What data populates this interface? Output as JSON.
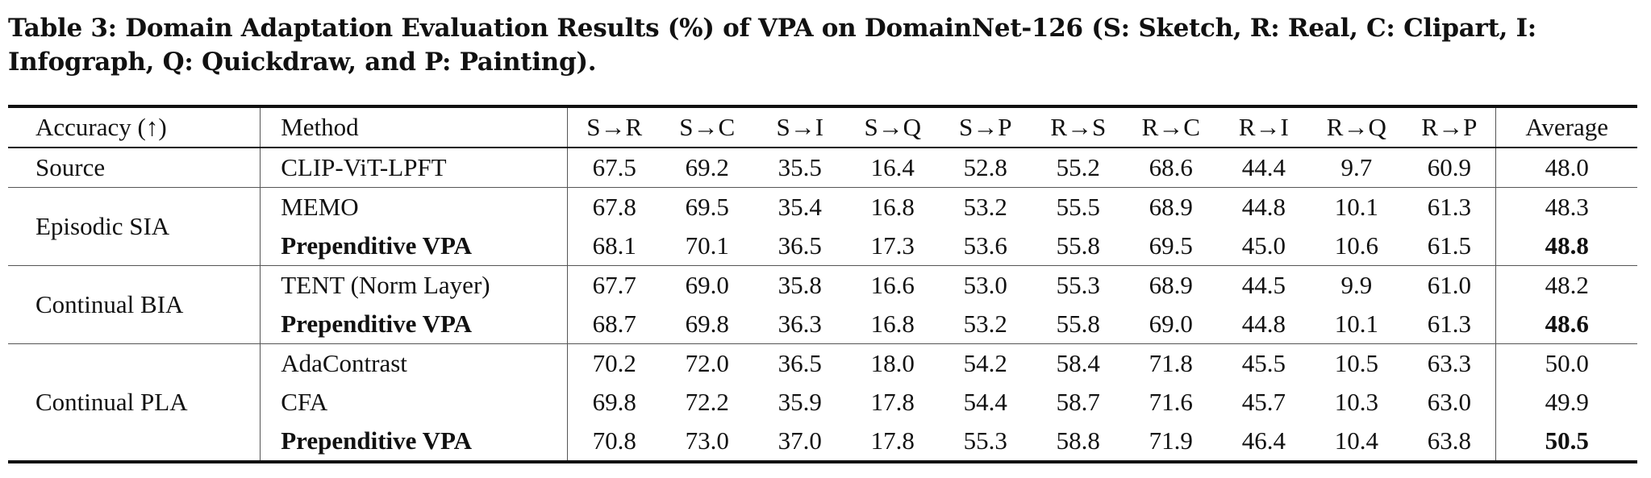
{
  "caption": "Table 3: Domain Adaptation Evaluation Results (%) of VPA on DomainNet-126 (S: Sketch, R: Real, C: Clipart, I: Infograph, Q: Quickdraw, and P: Painting).",
  "header": [
    "Accuracy (↑)",
    "Method",
    "S→R",
    "S→C",
    "S→I",
    "S→Q",
    "S→P",
    "R→S",
    "R→C",
    "R→I",
    "R→Q",
    "R→P",
    "Average"
  ],
  "groups": [
    {
      "label": "Source",
      "rows": [
        {
          "method": "CLIP-ViT-LPFT",
          "values": [
            "67.5",
            "69.2",
            "35.5",
            "16.4",
            "52.8",
            "55.2",
            "68.6",
            "44.4",
            "9.7",
            "60.9"
          ],
          "avg": "48.0"
        }
      ]
    },
    {
      "label": "Episodic SIA",
      "rows": [
        {
          "method": "MEMO",
          "values": [
            "67.8",
            "69.5",
            "35.4",
            "16.8",
            "53.2",
            "55.5",
            "68.9",
            "44.8",
            "10.1",
            "61.3"
          ],
          "avg": "48.3"
        },
        {
          "method": "Prependitive VPA",
          "values": [
            "68.1",
            "70.1",
            "36.5",
            "17.3",
            "53.6",
            "55.8",
            "69.5",
            "45.0",
            "10.6",
            "61.5"
          ],
          "avg": "48.8"
        }
      ]
    },
    {
      "label": "Continual BIA",
      "rows": [
        {
          "method": "TENT (Norm Layer)",
          "values": [
            "67.7",
            "69.0",
            "35.8",
            "16.6",
            "53.0",
            "55.3",
            "68.9",
            "44.5",
            "9.9",
            "61.0"
          ],
          "avg": "48.2"
        },
        {
          "method": "Prependitive VPA",
          "values": [
            "68.7",
            "69.8",
            "36.3",
            "16.8",
            "53.2",
            "55.8",
            "69.0",
            "44.8",
            "10.1",
            "61.3"
          ],
          "avg": "48.6"
        }
      ]
    },
    {
      "label": "Continual PLA",
      "rows": [
        {
          "method": "AdaContrast",
          "values": [
            "70.2",
            "72.0",
            "36.5",
            "18.0",
            "54.2",
            "58.4",
            "71.8",
            "45.5",
            "10.5",
            "63.3"
          ],
          "avg": "50.0"
        },
        {
          "method": "CFA",
          "values": [
            "69.8",
            "72.2",
            "35.9",
            "17.8",
            "54.4",
            "58.7",
            "71.6",
            "45.7",
            "10.3",
            "63.0"
          ],
          "avg": "49.9"
        },
        {
          "method": "Prependitive VPA",
          "values": [
            "70.8",
            "73.0",
            "37.0",
            "17.8",
            "55.3",
            "58.8",
            "71.9",
            "46.4",
            "10.4",
            "63.8"
          ],
          "avg": "50.5"
        }
      ]
    }
  ]
}
